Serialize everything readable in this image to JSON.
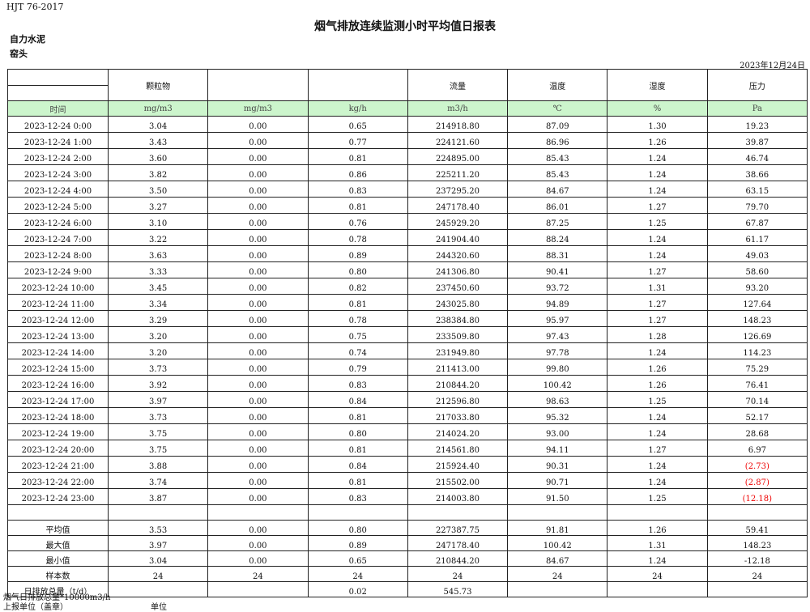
{
  "header": {
    "standard": "HJT  76-2017",
    "title": "烟气排放连续监测小时平均值日报表",
    "company": "自力水泥",
    "unit": "窑头",
    "date": "2023年12月24日"
  },
  "columns": [
    "",
    "颗粒物",
    "",
    "",
    "流量",
    "温度",
    "湿度",
    "压力"
  ],
  "units": [
    "时间",
    "mg/m3",
    "mg/m3",
    "kg/h",
    "m3/h",
    "℃",
    "%",
    "Pa"
  ],
  "colors": {
    "unit_row_bg": "#ccf5cc",
    "negative": "#ee0000"
  },
  "rows": [
    [
      "2023-12-24 0:00",
      "3.04",
      "0.00",
      "0.65",
      "214918.80",
      "87.09",
      "1.30",
      "19.23"
    ],
    [
      "2023-12-24 1:00",
      "3.43",
      "0.00",
      "0.77",
      "224121.60",
      "86.96",
      "1.26",
      "39.87"
    ],
    [
      "2023-12-24 2:00",
      "3.60",
      "0.00",
      "0.81",
      "224895.00",
      "85.43",
      "1.24",
      "46.74"
    ],
    [
      "2023-12-24 3:00",
      "3.82",
      "0.00",
      "0.86",
      "225211.20",
      "85.43",
      "1.24",
      "38.66"
    ],
    [
      "2023-12-24 4:00",
      "3.50",
      "0.00",
      "0.83",
      "237295.20",
      "84.67",
      "1.24",
      "63.15"
    ],
    [
      "2023-12-24 5:00",
      "3.27",
      "0.00",
      "0.81",
      "247178.40",
      "86.01",
      "1.27",
      "79.70"
    ],
    [
      "2023-12-24 6:00",
      "3.10",
      "0.00",
      "0.76",
      "245929.20",
      "87.25",
      "1.25",
      "67.87"
    ],
    [
      "2023-12-24 7:00",
      "3.22",
      "0.00",
      "0.78",
      "241904.40",
      "88.24",
      "1.24",
      "61.17"
    ],
    [
      "2023-12-24 8:00",
      "3.63",
      "0.00",
      "0.89",
      "244320.60",
      "88.31",
      "1.24",
      "49.03"
    ],
    [
      "2023-12-24 9:00",
      "3.33",
      "0.00",
      "0.80",
      "241306.80",
      "90.41",
      "1.27",
      "58.60"
    ],
    [
      "2023-12-24 10:00",
      "3.45",
      "0.00",
      "0.82",
      "237450.60",
      "93.72",
      "1.31",
      "93.20"
    ],
    [
      "2023-12-24 11:00",
      "3.34",
      "0.00",
      "0.81",
      "243025.80",
      "94.89",
      "1.27",
      "127.64"
    ],
    [
      "2023-12-24 12:00",
      "3.29",
      "0.00",
      "0.78",
      "238384.80",
      "95.97",
      "1.27",
      "148.23"
    ],
    [
      "2023-12-24 13:00",
      "3.20",
      "0.00",
      "0.75",
      "233509.80",
      "97.43",
      "1.28",
      "126.69"
    ],
    [
      "2023-12-24 14:00",
      "3.20",
      "0.00",
      "0.74",
      "231949.80",
      "97.78",
      "1.24",
      "114.23"
    ],
    [
      "2023-12-24 15:00",
      "3.73",
      "0.00",
      "0.79",
      "211413.00",
      "99.80",
      "1.26",
      "75.29"
    ],
    [
      "2023-12-24 16:00",
      "3.92",
      "0.00",
      "0.83",
      "210844.20",
      "100.42",
      "1.26",
      "76.41"
    ],
    [
      "2023-12-24 17:00",
      "3.97",
      "0.00",
      "0.84",
      "212596.80",
      "98.63",
      "1.25",
      "70.14"
    ],
    [
      "2023-12-24 18:00",
      "3.73",
      "0.00",
      "0.81",
      "217033.80",
      "95.32",
      "1.24",
      "52.17"
    ],
    [
      "2023-12-24 19:00",
      "3.75",
      "0.00",
      "0.80",
      "214024.20",
      "93.00",
      "1.24",
      "28.68"
    ],
    [
      "2023-12-24 20:00",
      "3.75",
      "0.00",
      "0.81",
      "214561.80",
      "94.11",
      "1.27",
      "6.97"
    ],
    [
      "2023-12-24 21:00",
      "3.88",
      "0.00",
      "0.84",
      "215924.40",
      "90.31",
      "1.24",
      "(2.73)"
    ],
    [
      "2023-12-24 22:00",
      "3.74",
      "0.00",
      "0.81",
      "215502.00",
      "90.71",
      "1.24",
      "(2.87)"
    ],
    [
      "2023-12-24 23:00",
      "3.87",
      "0.00",
      "0.83",
      "214003.80",
      "91.50",
      "1.25",
      "(12.18)"
    ]
  ],
  "summary": [
    [
      "平均值",
      "3.53",
      "0.00",
      "0.80",
      "227387.75",
      "91.81",
      "1.26",
      "59.41"
    ],
    [
      "最大值",
      "3.97",
      "0.00",
      "0.89",
      "247178.40",
      "100.42",
      "1.31",
      "148.23"
    ],
    [
      "最小值",
      "3.04",
      "0.00",
      "0.65",
      "210844.20",
      "84.67",
      "1.24",
      "-12.18"
    ],
    [
      "样本数",
      "24",
      "24",
      "24",
      "24",
      "24",
      "24",
      "24"
    ],
    [
      "日排放总量（t/d）",
      "",
      "",
      "0.02",
      "545.73",
      "",
      "",
      ""
    ]
  ],
  "footer": {
    "note": "烟气日排放总量*10000m3/h",
    "reporter": "上报单位（盖章）",
    "unit_label": "单位"
  }
}
